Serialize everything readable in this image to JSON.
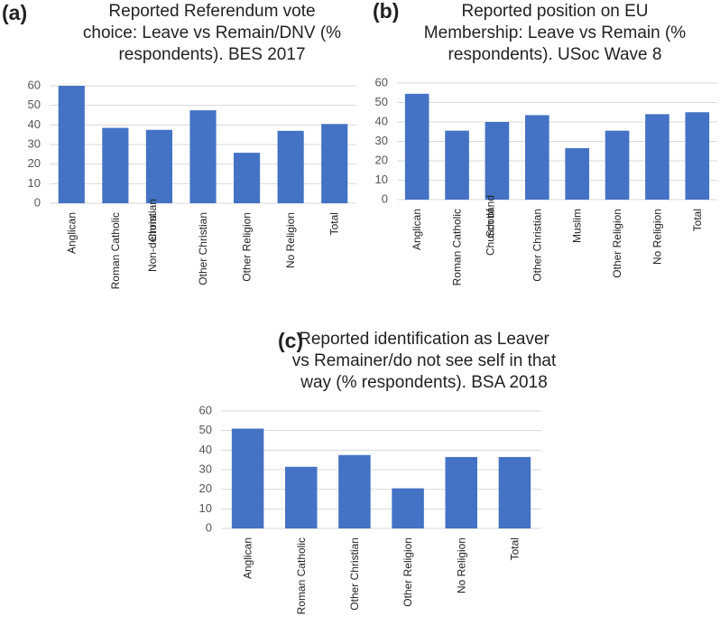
{
  "chart_data": [
    {
      "type": "bar",
      "panel": "(a)",
      "title": "Reported Referendum vote\nchoice: Leave vs Remain/DNV (%\nrespondents). BES 2017",
      "categories": [
        "Anglican",
        "Roman Catholic",
        "Non-denom.\nChristian",
        "Other Christian",
        "Other Religion",
        "No Religion",
        "Total"
      ],
      "values": [
        60,
        38.5,
        37.5,
        47.5,
        25.8,
        37,
        40.5
      ],
      "color": "#4472c4",
      "ylim": [
        0,
        60
      ],
      "yticks": [
        0,
        10,
        20,
        30,
        40,
        50,
        60
      ],
      "grid": true
    },
    {
      "type": "bar",
      "panel": "(b)",
      "title": "Reported position on EU\nMembership: Leave vs Remain (%\nrespondents). USoc Wave 8",
      "categories": [
        "Anglican",
        "Roman Catholic",
        "Church of\nScotland",
        "Other Christian",
        "Muslim",
        "Other Religion",
        "No Religion",
        "Total"
      ],
      "values": [
        54.5,
        35.5,
        40,
        43.5,
        26.5,
        35.5,
        44,
        45
      ],
      "color": "#4472c4",
      "ylim": [
        0,
        60
      ],
      "yticks": [
        0,
        10,
        20,
        30,
        40,
        50,
        60
      ],
      "grid": true
    },
    {
      "type": "bar",
      "panel": "(c)",
      "title": "Reported identification as Leaver\nvs Remainer/do not see self in that\nway (% respondents). BSA 2018",
      "categories": [
        "Anglican",
        "Roman Catholic",
        "Other Christian",
        "Other Religion",
        "No Religion",
        "Total"
      ],
      "values": [
        51,
        31.5,
        37.5,
        20.5,
        36.5,
        36.5
      ],
      "color": "#4472c4",
      "ylim": [
        0,
        60
      ],
      "yticks": [
        0,
        10,
        20,
        30,
        40,
        50,
        60
      ],
      "grid": true
    }
  ]
}
